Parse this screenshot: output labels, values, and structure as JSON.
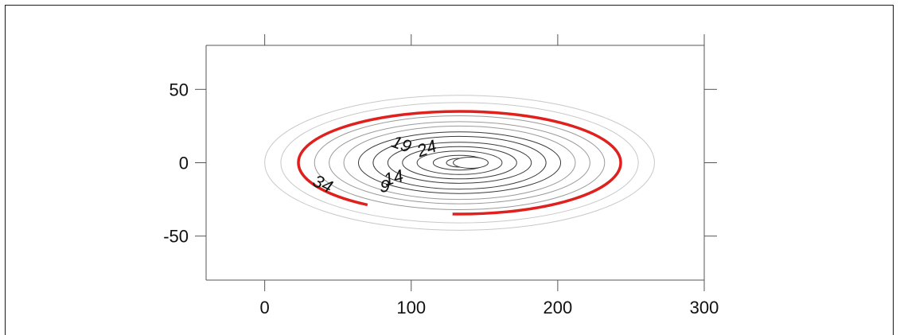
{
  "chart_data": {
    "type": "contour",
    "title": "",
    "xlabel": "",
    "ylabel": "",
    "xlim": [
      -40,
      300
    ],
    "ylim": [
      -80,
      80
    ],
    "x_ticks": [
      0,
      100,
      200,
      300
    ],
    "y_ticks": [
      50,
      0,
      -50
    ],
    "x_tick_labels": [
      "0",
      "100",
      "200",
      "300"
    ],
    "y_tick_labels": [
      "50",
      "0",
      "-50"
    ],
    "grid": false,
    "center": {
      "x": 133,
      "y": 0
    },
    "contours": [
      {
        "rx": 133,
        "ry": 46,
        "highlight": false
      },
      {
        "rx": 122,
        "ry": 41,
        "highlight": false
      },
      {
        "rx": 110,
        "ry": 35,
        "highlight": true
      },
      {
        "rx": 99,
        "ry": 32,
        "highlight": false
      },
      {
        "rx": 89,
        "ry": 28,
        "highlight": false
      },
      {
        "rx": 79,
        "ry": 25,
        "highlight": false
      },
      {
        "rx": 69,
        "ry": 21,
        "highlight": false
      },
      {
        "rx": 59,
        "ry": 18,
        "highlight": false
      },
      {
        "rx": 49,
        "ry": 14,
        "highlight": false
      },
      {
        "rx": 39,
        "ry": 11,
        "highlight": false
      },
      {
        "rx": 29,
        "ry": 8,
        "highlight": false
      },
      {
        "rx": 18,
        "ry": 5,
        "highlight": false
      },
      {
        "rx": 9,
        "ry": 3,
        "highlight": false
      }
    ],
    "contour_labels": [
      {
        "text": "34",
        "x": 38,
        "y": -18,
        "rotate": 25
      },
      {
        "text": "9",
        "x": 82,
        "y": -20,
        "rotate": 0
      },
      {
        "text": "14",
        "x": 89,
        "y": -14,
        "rotate": -15
      },
      {
        "text": "19",
        "x": 92,
        "y": 9,
        "rotate": 20
      },
      {
        "text": "24",
        "x": 112,
        "y": 6,
        "rotate": -20
      }
    ],
    "colors": {
      "highlight": "#e0201c",
      "contour": "#9a9a9a",
      "inner_contour": "#3a3a3a",
      "axis": "#555555"
    }
  }
}
